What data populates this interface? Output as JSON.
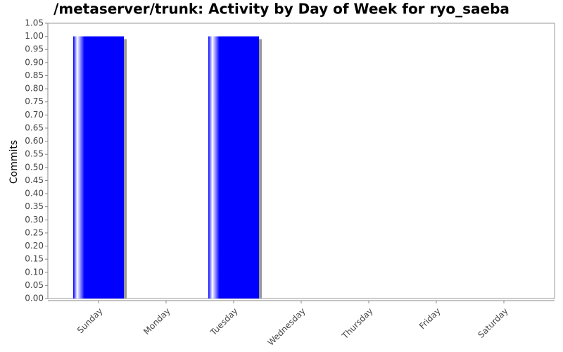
{
  "chart_data": {
    "type": "bar",
    "title": "/metaserver/trunk: Activity by Day of Week for ryo_saeba",
    "y_label": "Commits",
    "categories": [
      "Sunday",
      "Monday",
      "Tuesday",
      "Wednesday",
      "Thursday",
      "Friday",
      "Saturday"
    ],
    "values": [
      1,
      0,
      1,
      0,
      0,
      0,
      0
    ],
    "color": "#0000ff",
    "ylim": [
      0,
      1.05
    ],
    "yticks": [
      {
        "value": 0,
        "label": "0.00"
      },
      {
        "value": 0.05,
        "label": "0.05"
      },
      {
        "value": 0.1,
        "label": "0.10"
      },
      {
        "value": 0.15,
        "label": "0.15"
      },
      {
        "value": 0.2,
        "label": "0.20"
      },
      {
        "value": 0.25,
        "label": "0.25"
      },
      {
        "value": 0.3,
        "label": "0.30"
      },
      {
        "value": 0.35,
        "label": "0.35"
      },
      {
        "value": 0.4,
        "label": "0.40"
      },
      {
        "value": 0.45,
        "label": "0.45"
      },
      {
        "value": 0.5,
        "label": "0.50"
      },
      {
        "value": 0.55,
        "label": "0.55"
      },
      {
        "value": 0.6,
        "label": "0.60"
      },
      {
        "value": 0.65,
        "label": "0.65"
      },
      {
        "value": 0.7,
        "label": "0.70"
      },
      {
        "value": 0.75,
        "label": "0.75"
      },
      {
        "value": 0.8,
        "label": "0.80"
      },
      {
        "value": 0.85,
        "label": "0.85"
      },
      {
        "value": 0.9,
        "label": "0.90"
      },
      {
        "value": 0.95,
        "label": "0.95"
      },
      {
        "value": 1,
        "label": "1.00"
      },
      {
        "value": 1.05,
        "label": "1.05"
      }
    ],
    "grid": false
  }
}
